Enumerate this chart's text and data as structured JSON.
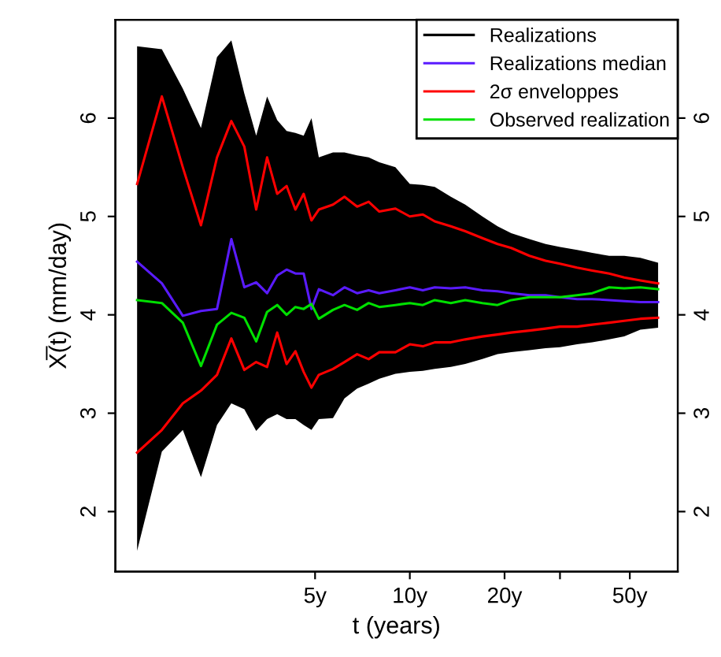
{
  "chart_data": {
    "type": "line",
    "xlabel": "t (years)",
    "ylabel": "X̅(t) (mm/day)",
    "log": "x",
    "grid": false,
    "legend": "top right",
    "marker": "none",
    "line_style": "solid",
    "x": [
      1.36,
      1.63,
      1.9,
      2.17,
      2.44,
      2.71,
      2.98,
      3.25,
      3.52,
      3.79,
      4.06,
      4.33,
      4.6,
      4.87,
      5.14,
      5.7,
      6.2,
      6.8,
      7.4,
      8.0,
      9,
      10,
      11,
      12,
      13.5,
      15,
      17,
      19,
      21,
      24,
      27,
      30,
      34,
      38,
      43,
      48,
      54,
      61.5
    ],
    "xlim": [
      1.16,
      71
    ],
    "xticks": [
      {
        "value": 5,
        "label": "5y"
      },
      {
        "value": 10,
        "label": "10y"
      },
      {
        "value": 20,
        "label": "20y"
      },
      {
        "value": 30,
        "label": null
      },
      {
        "value": 50,
        "label": "50y"
      }
    ],
    "ylim": [
      1.39,
      7.0
    ],
    "yticks": [
      2,
      3,
      4,
      5,
      6
    ],
    "y2lim": [
      1.39,
      7.0
    ],
    "y2ticks": [
      2,
      3,
      4,
      5,
      6
    ],
    "series": [
      {
        "name": "Realizations",
        "color": "#000000",
        "values": [
          null,
          null,
          null,
          null,
          null,
          null,
          null,
          null,
          null,
          null,
          null,
          null,
          null,
          null,
          null,
          null,
          null,
          null,
          null,
          null,
          null,
          null,
          null,
          null,
          null,
          null,
          null,
          null,
          null,
          null,
          null,
          null,
          null,
          null,
          null,
          null,
          null,
          null
        ],
        "upper": [
          6.73,
          6.7,
          6.3,
          5.9,
          6.62,
          6.79,
          6.25,
          5.82,
          6.22,
          5.98,
          5.87,
          5.85,
          5.82,
          6.0,
          5.6,
          5.65,
          5.65,
          5.62,
          5.6,
          5.55,
          5.5,
          5.33,
          5.32,
          5.3,
          5.2,
          5.12,
          5.0,
          4.9,
          4.83,
          4.77,
          4.72,
          4.69,
          4.66,
          4.63,
          4.6,
          4.6,
          4.58,
          4.53
        ],
        "lower": [
          1.6,
          2.61,
          2.83,
          2.35,
          2.88,
          3.1,
          3.04,
          2.82,
          2.94,
          2.99,
          2.94,
          2.94,
          2.88,
          2.83,
          2.94,
          2.95,
          3.15,
          3.25,
          3.3,
          3.35,
          3.4,
          3.42,
          3.43,
          3.45,
          3.47,
          3.5,
          3.55,
          3.6,
          3.62,
          3.64,
          3.66,
          3.67,
          3.7,
          3.72,
          3.75,
          3.78,
          3.85,
          3.87
        ]
      },
      {
        "name": "Realizations median",
        "color": "#5a1bff",
        "values": [
          4.54,
          4.32,
          3.99,
          4.04,
          4.06,
          4.77,
          4.28,
          4.33,
          4.22,
          4.4,
          4.46,
          4.42,
          4.42,
          4.06,
          4.26,
          4.2,
          4.28,
          4.22,
          4.25,
          4.22,
          4.25,
          4.28,
          4.25,
          4.28,
          4.27,
          4.28,
          4.25,
          4.24,
          4.22,
          4.2,
          4.2,
          4.18,
          4.16,
          4.16,
          4.15,
          4.14,
          4.13,
          4.13
        ]
      },
      {
        "name": "2σ enveloppes",
        "color": "#ff0000",
        "values": [
          5.33,
          6.22,
          5.5,
          4.91,
          5.6,
          5.97,
          5.71,
          5.07,
          5.6,
          5.23,
          5.31,
          5.07,
          5.23,
          4.96,
          5.07,
          5.12,
          5.2,
          5.1,
          5.15,
          5.05,
          5.08,
          5.0,
          5.02,
          4.95,
          4.9,
          4.85,
          4.78,
          4.72,
          4.68,
          4.6,
          4.55,
          4.52,
          4.48,
          4.45,
          4.42,
          4.38,
          4.35,
          4.32
        ]
      },
      {
        "color": "#ff0000",
        "values": [
          2.6,
          2.83,
          3.1,
          3.23,
          3.39,
          3.76,
          3.44,
          3.52,
          3.47,
          3.82,
          3.5,
          3.63,
          3.42,
          3.26,
          3.39,
          3.45,
          3.52,
          3.6,
          3.55,
          3.62,
          3.62,
          3.7,
          3.68,
          3.72,
          3.72,
          3.75,
          3.78,
          3.8,
          3.82,
          3.84,
          3.86,
          3.88,
          3.88,
          3.9,
          3.92,
          3.94,
          3.96,
          3.97
        ]
      },
      {
        "name": "Observed realization",
        "color": "#00e000",
        "values": [
          4.15,
          4.12,
          3.92,
          3.48,
          3.9,
          4.02,
          3.97,
          3.73,
          4.03,
          4.1,
          4.0,
          4.08,
          4.06,
          4.11,
          3.96,
          4.05,
          4.1,
          4.05,
          4.12,
          4.08,
          4.1,
          4.12,
          4.1,
          4.15,
          4.12,
          4.15,
          4.12,
          4.1,
          4.15,
          4.18,
          4.18,
          4.18,
          4.2,
          4.22,
          4.28,
          4.27,
          4.28,
          4.26
        ]
      }
    ]
  }
}
